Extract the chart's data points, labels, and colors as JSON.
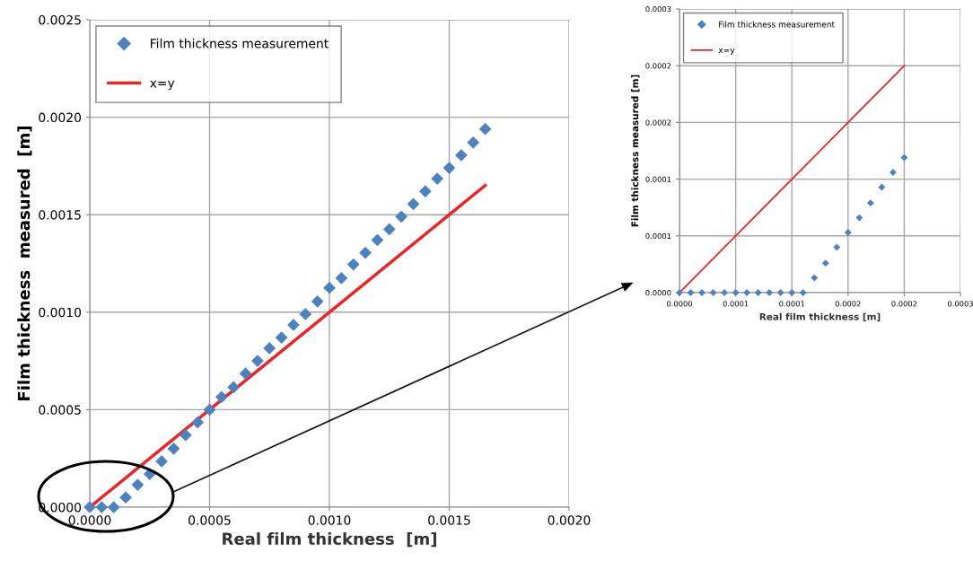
{
  "chart_data": [
    {
      "type": "scatter",
      "xlabel": "Real film thickness  [m]",
      "ylabel": "Film thickness  measured  [m]",
      "xlim": [
        0,
        0.002
      ],
      "ylim": [
        0,
        0.0025
      ],
      "xticks": [
        {
          "value": 0,
          "label": "0.0000"
        },
        {
          "value": 0.0005,
          "label": "0.0005"
        },
        {
          "value": 0.001,
          "label": "0.0010"
        },
        {
          "value": 0.0015,
          "label": "0.0015"
        },
        {
          "value": 0.002,
          "label": "0.0020"
        }
      ],
      "yticks": [
        {
          "value": 0,
          "label": "0.0000"
        },
        {
          "value": 0.0005,
          "label": "0.0005"
        },
        {
          "value": 0.001,
          "label": "0.0010"
        },
        {
          "value": 0.0015,
          "label": "0.0015"
        },
        {
          "value": 0.002,
          "label": "0.0020"
        },
        {
          "value": 0.0025,
          "label": "0.0025"
        }
      ],
      "grid": true,
      "legend": "top left",
      "series": [
        {
          "name": "Film thickness measurement",
          "marker": "diamond",
          "color": "#4f81bd",
          "x": [
            0,
            5e-05,
            0.0001,
            0.00015,
            0.0002,
            0.00025,
            0.0003,
            0.00035,
            0.0004,
            0.00045,
            0.0005,
            0.00055,
            0.0006,
            0.00065,
            0.0007,
            0.00075,
            0.0008,
            0.00085,
            0.0009,
            0.00095,
            0.001,
            0.00105,
            0.0011,
            0.00115,
            0.0012,
            0.00125,
            0.0013,
            0.00135,
            0.0014,
            0.00145,
            0.0015,
            0.00155,
            0.0016,
            0.00165
          ],
          "values": [
            0,
            0,
            0,
            5e-05,
            0.000115,
            0.00017,
            0.000235,
            0.0003,
            0.00037,
            0.000435,
            0.0005,
            0.000565,
            0.000615,
            0.000685,
            0.00075,
            0.000815,
            0.00087,
            0.000935,
            0.00099,
            0.001055,
            0.001125,
            0.001175,
            0.001245,
            0.001305,
            0.00137,
            0.001425,
            0.00149,
            0.001555,
            0.00162,
            0.001685,
            0.00174,
            0.001805,
            0.00187,
            0.00194
          ]
        },
        {
          "name": "x=y",
          "type": "line",
          "marker": "none",
          "line_style": "solid",
          "color": "#e8262a",
          "x": [
            0,
            0.0005,
            0.001,
            0.0015,
            0.00165
          ],
          "values": [
            0,
            0.0005,
            0.001,
            0.0015,
            0.00165
          ]
        }
      ]
    },
    {
      "type": "scatter",
      "xlabel": "Real film thickness [m]",
      "ylabel": "Film thickness measured [m]",
      "xlim": [
        0,
        0.00025
      ],
      "ylim": [
        0,
        0.00025
      ],
      "xticks": [
        {
          "value": 0,
          "label": "0.0000"
        },
        {
          "value": 5e-05,
          "label": "0.0001"
        },
        {
          "value": 0.0001,
          "label": "0.0001"
        },
        {
          "value": 0.00015,
          "label": "0.0002"
        },
        {
          "value": 0.0002,
          "label": "0.0002"
        },
        {
          "value": 0.00025,
          "label": "0.0003"
        }
      ],
      "yticks": [
        {
          "value": 0,
          "label": "0.0000"
        },
        {
          "value": 5e-05,
          "label": "0.0001"
        },
        {
          "value": 0.0001,
          "label": "0.0001"
        },
        {
          "value": 0.00015,
          "label": "0.0002"
        },
        {
          "value": 0.0002,
          "label": "0.0002"
        },
        {
          "value": 0.00025,
          "label": "0.0003"
        }
      ],
      "grid": true,
      "legend": "top left",
      "series": [
        {
          "name": "Film thickness measurement",
          "marker": "diamond",
          "color": "#4f81bd",
          "x": [
            0,
            1e-05,
            2e-05,
            3e-05,
            4e-05,
            5e-05,
            6e-05,
            7e-05,
            8e-05,
            9e-05,
            0.0001,
            0.00011,
            0.00012,
            0.00013,
            0.00014,
            0.00015,
            0.00016,
            0.00017,
            0.00018,
            0.00019,
            0.0002
          ],
          "values": [
            0,
            0,
            0,
            0,
            0,
            0,
            0,
            0,
            0,
            0,
            0,
            0,
            1.3e-05,
            2.6e-05,
            4e-05,
            5.3e-05,
            6.6e-05,
            7.9e-05,
            9.3e-05,
            0.000106,
            0.000119
          ]
        },
        {
          "name": "x=y",
          "type": "line",
          "marker": "none",
          "line_style": "solid",
          "color": "#e8262a",
          "x": [
            0,
            0.0002
          ],
          "values": [
            0,
            0.0002
          ]
        }
      ]
    }
  ]
}
